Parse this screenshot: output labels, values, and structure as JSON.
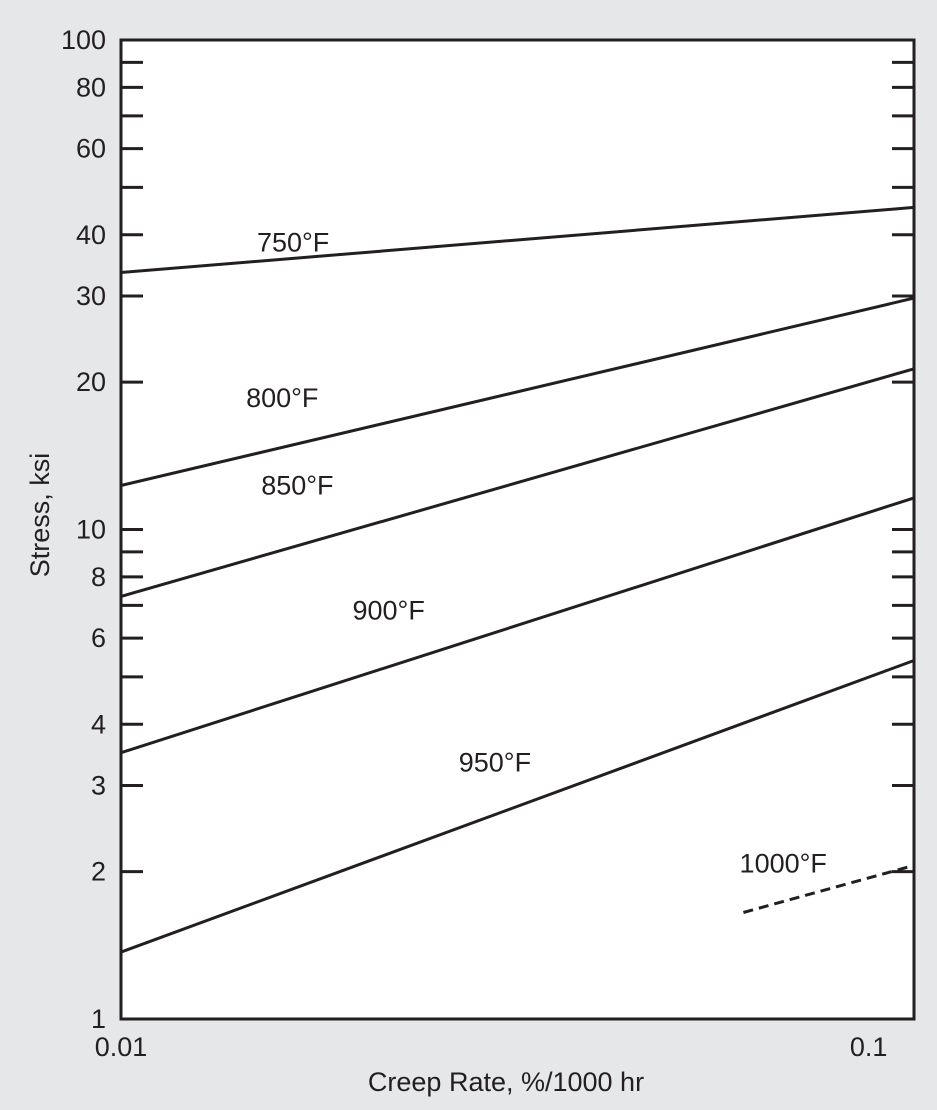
{
  "chart_data": {
    "type": "line",
    "title": "",
    "xlabel": "Creep Rate, %/1000 hr",
    "ylabel": "Stress, ksi",
    "x_scale": "log",
    "y_scale": "log",
    "xlim": [
      0.01,
      0.115
    ],
    "ylim": [
      1,
      100
    ],
    "grid": false,
    "x_ticks": [
      {
        "value": 0.01,
        "label": "0.01"
      },
      {
        "value": 0.1,
        "label": "0.1"
      }
    ],
    "y_ticks_labeled": [
      {
        "value": 1,
        "label": "1"
      },
      {
        "value": 2,
        "label": "2"
      },
      {
        "value": 3,
        "label": "3"
      },
      {
        "value": 4,
        "label": "4"
      },
      {
        "value": 6,
        "label": "6"
      },
      {
        "value": 8,
        "label": "8"
      },
      {
        "value": 10,
        "label": "10"
      },
      {
        "value": 20,
        "label": "20"
      },
      {
        "value": 30,
        "label": "30"
      },
      {
        "value": 40,
        "label": "40"
      },
      {
        "value": 60,
        "label": "60"
      },
      {
        "value": 80,
        "label": "80"
      },
      {
        "value": 100,
        "label": "100"
      }
    ],
    "y_minor_ticks": [
      5,
      7,
      9,
      50,
      70,
      90
    ],
    "series": [
      {
        "name": "750°F",
        "style": "solid",
        "x": [
          0.01,
          0.115
        ],
        "y": [
          33.5,
          45.5
        ],
        "label_at": {
          "x": 0.0152,
          "y": 37
        }
      },
      {
        "name": "800°F",
        "style": "solid",
        "x": [
          0.01,
          0.115
        ],
        "y": [
          12.3,
          29.7
        ],
        "label_at": {
          "x": 0.0147,
          "y": 17.8
        }
      },
      {
        "name": "850°F",
        "style": "solid",
        "x": [
          0.01,
          0.115
        ],
        "y": [
          7.3,
          21.3
        ],
        "label_at": {
          "x": 0.0154,
          "y": 11.8
        }
      },
      {
        "name": "900°F",
        "style": "solid",
        "x": [
          0.01,
          0.115
        ],
        "y": [
          3.5,
          11.6
        ],
        "label_at": {
          "x": 0.0204,
          "y": 6.55
        }
      },
      {
        "name": "950°F",
        "style": "solid",
        "x": [
          0.01,
          0.115
        ],
        "y": [
          1.37,
          5.4
        ],
        "label_at": {
          "x": 0.0283,
          "y": 3.2
        }
      },
      {
        "name": "1000°F",
        "style": "dashed",
        "x": [
          0.068,
          0.115
        ],
        "y": [
          1.65,
          2.06
        ],
        "label_at": {
          "x": 0.0672,
          "y": 1.99
        }
      }
    ],
    "colors": {
      "background": "#e6e7e8",
      "plot_area": "#ffffff",
      "ink": "#231f20"
    }
  }
}
